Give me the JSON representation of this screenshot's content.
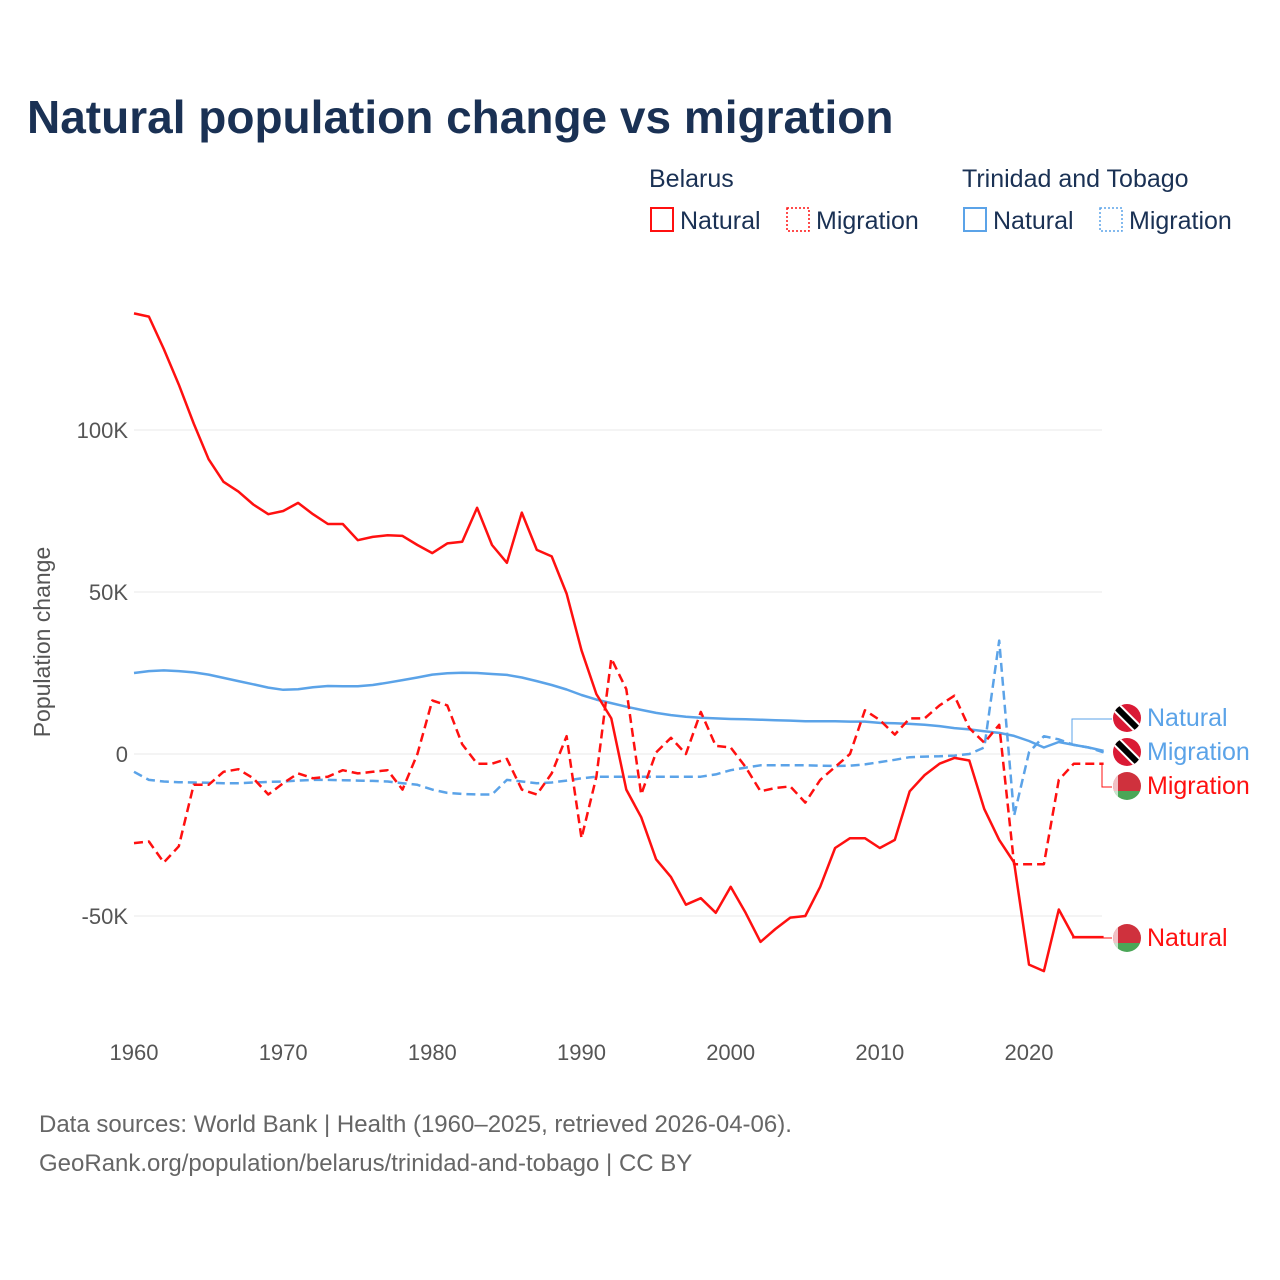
{
  "title": "Natural population change vs migration",
  "legend": {
    "groups": [
      {
        "name": "Belarus",
        "color": "#ff1010",
        "items": [
          "Natural",
          "Migration"
        ]
      },
      {
        "name": "Trinidad and Tobago",
        "color": "#5ba3e8",
        "items": [
          "Natural",
          "Migration"
        ]
      }
    ]
  },
  "end_labels": [
    "Natural",
    "Migration",
    "Migration",
    "Natural"
  ],
  "source": {
    "line1": "Data sources: World Bank | Health (1960–2025, retrieved 2026-04-06).",
    "line2": "GeoRank.org/population/belarus/trinidad-and-tobago | CC BY"
  },
  "chart_data": {
    "type": "line",
    "title": "Natural population change vs migration",
    "xlabel": "",
    "ylabel": "Population change",
    "xlim": [
      1960,
      2025
    ],
    "ylim": [
      -80000,
      140000
    ],
    "x_ticks": [
      1960,
      1970,
      1980,
      1990,
      2000,
      2010,
      2020
    ],
    "x_tick_labels": [
      "1960",
      "1970",
      "1980",
      "1990",
      "2000",
      "2010",
      "2020"
    ],
    "y_ticks": [
      -50000,
      0,
      50000,
      100000
    ],
    "y_tick_labels": [
      "-50K",
      "0",
      "50K",
      "100K"
    ],
    "grid": true,
    "legend_position": "top-right",
    "x_start": 1960,
    "series": [
      {
        "name": "Belarus Natural",
        "country": "Belarus",
        "kind": "Natural",
        "color": "#ff1010",
        "dash": false,
        "values": [
          136000,
          135000,
          125000,
          114000,
          102000,
          91000,
          84000,
          81000,
          77000,
          74000,
          75000,
          77500,
          74000,
          71000,
          71000,
          66000,
          67000,
          67500,
          67300,
          64500,
          62000,
          65000,
          65500,
          76000,
          64500,
          59000,
          74500,
          63000,
          61000,
          49500,
          32000,
          18500,
          11000,
          -11000,
          -19500,
          -32500,
          -38000,
          -46500,
          -44500,
          -49000,
          -41000,
          -49000,
          -58000,
          -54000,
          -50500,
          -50000,
          -41000,
          -29000,
          -26000,
          -26000,
          -29000,
          -26500,
          -11500,
          -6500,
          -3000,
          -1200,
          -2000,
          -17000,
          -26500,
          -33500,
          -65000,
          -67000,
          -48000,
          -56500,
          -56500,
          -56500
        ]
      },
      {
        "name": "Belarus Migration",
        "country": "Belarus",
        "kind": "Migration",
        "color": "#ff1010",
        "dash": true,
        "values": [
          -27500,
          -27000,
          -33500,
          -28500,
          -9500,
          -9500,
          -5500,
          -4700,
          -7500,
          -12500,
          -9000,
          -6000,
          -7500,
          -7000,
          -5000,
          -6000,
          -5500,
          -5000,
          -11000,
          0,
          16500,
          15000,
          3000,
          -3000,
          -3000,
          -1500,
          -11000,
          -12500,
          -6000,
          5500,
          -26000,
          -7000,
          29500,
          20000,
          -12500,
          500,
          5000,
          0,
          13000,
          2500,
          2000,
          -4000,
          -11500,
          -10500,
          -10000,
          -15000,
          -8000,
          -4000,
          0,
          13500,
          10500,
          6000,
          11000,
          11000,
          15000,
          18000,
          8000,
          3500,
          9000,
          -34000,
          -34000,
          -34000,
          -8000,
          -3000,
          -3000,
          -3000
        ]
      },
      {
        "name": "Trinidad and Tobago Natural",
        "country": "Trinidad and Tobago",
        "kind": "Natural",
        "color": "#5ba3e8",
        "dash": false,
        "values": [
          25000,
          25600,
          25800,
          25600,
          25200,
          24500,
          23500,
          22500,
          21500,
          20500,
          19800,
          20000,
          20600,
          21000,
          20900,
          20900,
          21300,
          22000,
          22800,
          23600,
          24500,
          24900,
          25100,
          25000,
          24700,
          24400,
          23600,
          22500,
          21300,
          19900,
          18200,
          16800,
          15700,
          14600,
          13600,
          12700,
          12000,
          11500,
          11200,
          11000,
          10800,
          10700,
          10600,
          10400,
          10300,
          10100,
          10100,
          10100,
          10000,
          10000,
          9600,
          9500,
          9300,
          9000,
          8600,
          8000,
          7600,
          7000,
          6500,
          5600,
          4000,
          2000,
          3700,
          2800,
          2000,
          1000
        ]
      },
      {
        "name": "Trinidad and Tobago Migration",
        "country": "Trinidad and Tobago",
        "kind": "Migration",
        "color": "#5ba3e8",
        "dash": true,
        "values": [
          -5500,
          -8000,
          -8500,
          -8700,
          -8800,
          -8900,
          -9000,
          -9000,
          -8800,
          -8600,
          -8500,
          -8200,
          -8000,
          -8000,
          -8100,
          -8200,
          -8300,
          -8500,
          -9000,
          -9500,
          -11000,
          -12000,
          -12300,
          -12500,
          -12500,
          -8000,
          -8500,
          -9000,
          -8800,
          -8200,
          -7500,
          -7000,
          -7000,
          -7000,
          -7000,
          -7000,
          -7000,
          -7000,
          -7000,
          -6300,
          -5000,
          -4200,
          -3500,
          -3500,
          -3500,
          -3500,
          -3600,
          -3700,
          -3600,
          -3200,
          -2500,
          -1800,
          -1000,
          -800,
          -700,
          -500,
          0,
          2000,
          35000,
          -19000,
          500,
          5500,
          4500,
          2800,
          2000,
          500
        ]
      }
    ]
  }
}
